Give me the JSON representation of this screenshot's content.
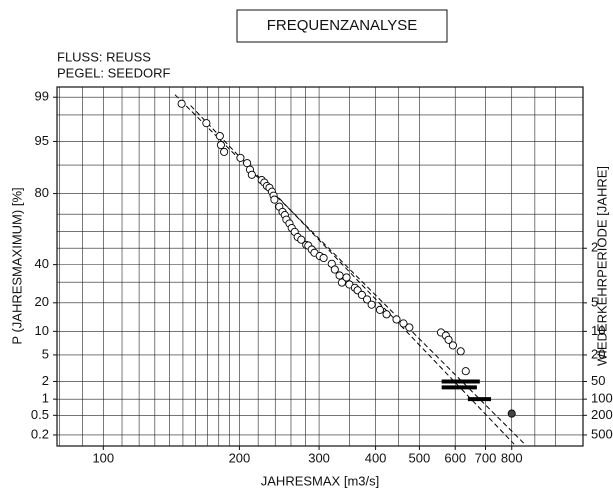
{
  "chart_data": {
    "type": "probability",
    "title": "FREQUENZANALYSE",
    "subtitle_lines": [
      "FLUSS: REUSS",
      "PEGEL: SEEDORF"
    ],
    "x_label": "JAHRESMAX  [m3/s]",
    "y_label": "P (JAHRESMAXIMUM)  [%]",
    "y2_label": "WIEDERKEHRPERIODE  [JAHRE]",
    "x_log": true,
    "xlim": [
      79,
      1150
    ],
    "xticks": [
      100,
      200,
      300,
      400,
      500,
      600,
      700,
      800
    ],
    "x_grid": [
      80,
      90,
      100,
      110,
      120,
      130,
      140,
      150,
      160,
      170,
      180,
      190,
      200,
      220,
      240,
      260,
      280,
      300,
      350,
      400,
      450,
      500,
      600,
      700,
      800,
      900,
      1000
    ],
    "ylim": [
      99.35,
      0.115
    ],
    "yticks": [
      99,
      95,
      80,
      40,
      20,
      10,
      5,
      2,
      1,
      0.5,
      0.2
    ],
    "y_grid": [
      99,
      98,
      95,
      90,
      80,
      70,
      60,
      50,
      40,
      30,
      20,
      10,
      5,
      2,
      1,
      0.5,
      0.2
    ],
    "y2lim": [
      1.0065,
      870
    ],
    "y2ticks": [
      2,
      5,
      10,
      20,
      50,
      100,
      200,
      500
    ],
    "grid": true,
    "color": "#000000",
    "x": [
      149,
      169,
      181,
      182,
      185,
      201,
      208,
      211,
      213,
      224,
      227,
      230,
      233,
      236,
      238,
      239,
      245,
      249,
      252,
      254,
      258,
      261,
      265,
      269,
      274,
      281,
      284,
      289,
      293,
      301,
      307,
      320,
      325,
      333,
      337,
      345,
      350,
      360,
      365,
      373,
      383,
      392,
      409,
      423,
      445,
      461,
      475,
      558,
      572,
      580,
      593,
      617,
      633,
      800
    ],
    "values": [
      98.7,
      97.3,
      95.8,
      94.4,
      93.1,
      91.8,
      90.5,
      88.7,
      87.1,
      85.3,
      84.4,
      83.1,
      82.4,
      80.8,
      79.1,
      77.3,
      73.9,
      71.2,
      69.5,
      67.0,
      64.8,
      62.2,
      59.9,
      56.8,
      55.2,
      52,
      51.6,
      49.2,
      47.2,
      45.2,
      44,
      40.5,
      37.1,
      33.7,
      29.8,
      32.6,
      28.8,
      27.1,
      25.8,
      23.6,
      21.5,
      19.2,
      17.1,
      15.4,
      13.6,
      12.3,
      11.1,
      9.7,
      8.9,
      7.9,
      6.7,
      5.6,
      2.9,
      0.54
    ],
    "fit_lines": [
      {
        "x": [
          144,
          855
        ],
        "values": [
          99.1,
          0.126
        ]
      },
      {
        "x": [
          156,
          810
        ],
        "values": [
          98.6,
          0.126
        ]
      }
    ],
    "intervals": [
      {
        "x": [
          560,
          680
        ],
        "value": 2.0
      },
      {
        "x": [
          560,
          670
        ],
        "value": 1.6
      },
      {
        "x": [
          640,
          720
        ],
        "value": 1.0
      }
    ]
  }
}
